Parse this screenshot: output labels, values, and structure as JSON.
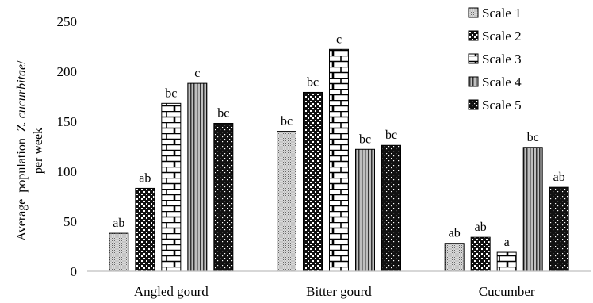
{
  "chart_data": {
    "type": "bar",
    "ylabel": {
      "line1_prefix": "Average  population  ",
      "line1_species": "Z. cucurbitae",
      "line1_suffix": "/",
      "line2": "per week"
    },
    "categories": [
      "Angled gourd",
      "Bitter gourd",
      "Cucumber"
    ],
    "ylim": [
      0,
      250
    ],
    "yticks": [
      0,
      50,
      100,
      150,
      200,
      250
    ],
    "grid": false,
    "legend_position": "top-right",
    "series": [
      {
        "name": "Scale 1",
        "pattern": "dots-fine",
        "values": [
          38,
          140,
          28
        ],
        "labels": [
          "ab",
          "bc",
          "ab"
        ]
      },
      {
        "name": "Scale 2",
        "pattern": "checker",
        "values": [
          83,
          179,
          34
        ],
        "labels": [
          "ab",
          "bc",
          "ab"
        ]
      },
      {
        "name": "Scale 3",
        "pattern": "brick",
        "values": [
          168,
          222,
          19
        ],
        "labels": [
          "bc",
          "c",
          "a"
        ]
      },
      {
        "name": "Scale 4",
        "pattern": "vlines",
        "values": [
          188,
          122,
          124
        ],
        "labels": [
          "c",
          "bc",
          "bc"
        ]
      },
      {
        "name": "Scale 5",
        "pattern": "dots-dense",
        "values": [
          148,
          126,
          84
        ],
        "labels": [
          "bc",
          "bc",
          "ab"
        ]
      }
    ]
  }
}
